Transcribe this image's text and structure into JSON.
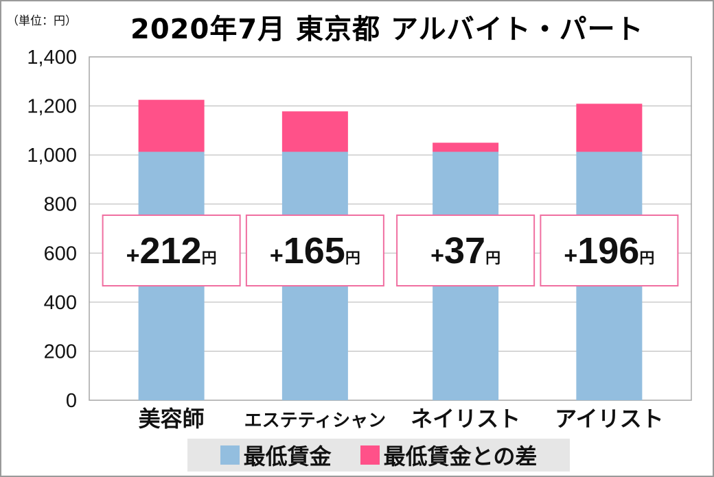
{
  "unit_label": "（単位：円）",
  "chart_data": {
    "type": "bar",
    "stacked": true,
    "title": "2020年7月 東京都 アルバイト・パート",
    "categories": [
      "美容師",
      "エステティシャン",
      "ネイリスト",
      "アイリスト"
    ],
    "series": [
      {
        "name": "最低賃金",
        "color": "#93bedf",
        "values": [
          1013,
          1013,
          1013,
          1013
        ]
      },
      {
        "name": "最低賃金との差",
        "color": "#ff5189",
        "values": [
          212,
          165,
          37,
          196
        ]
      }
    ],
    "annotations": [
      {
        "plus": "+",
        "value": "212",
        "suffix": "円"
      },
      {
        "plus": "+",
        "value": "165",
        "suffix": "円"
      },
      {
        "plus": "+",
        "value": "37",
        "suffix": "円"
      },
      {
        "plus": "+",
        "value": "196",
        "suffix": "円"
      }
    ],
    "ylim": [
      0,
      1400
    ],
    "yticks": [
      "0",
      "200",
      "400",
      "600",
      "800",
      "1,000",
      "1,200",
      "1,400"
    ],
    "ytick_values": [
      0,
      200,
      400,
      600,
      800,
      1000,
      1200,
      1400
    ],
    "grid": true,
    "legend_position": "bottom",
    "xlabel": "",
    "ylabel": ""
  }
}
